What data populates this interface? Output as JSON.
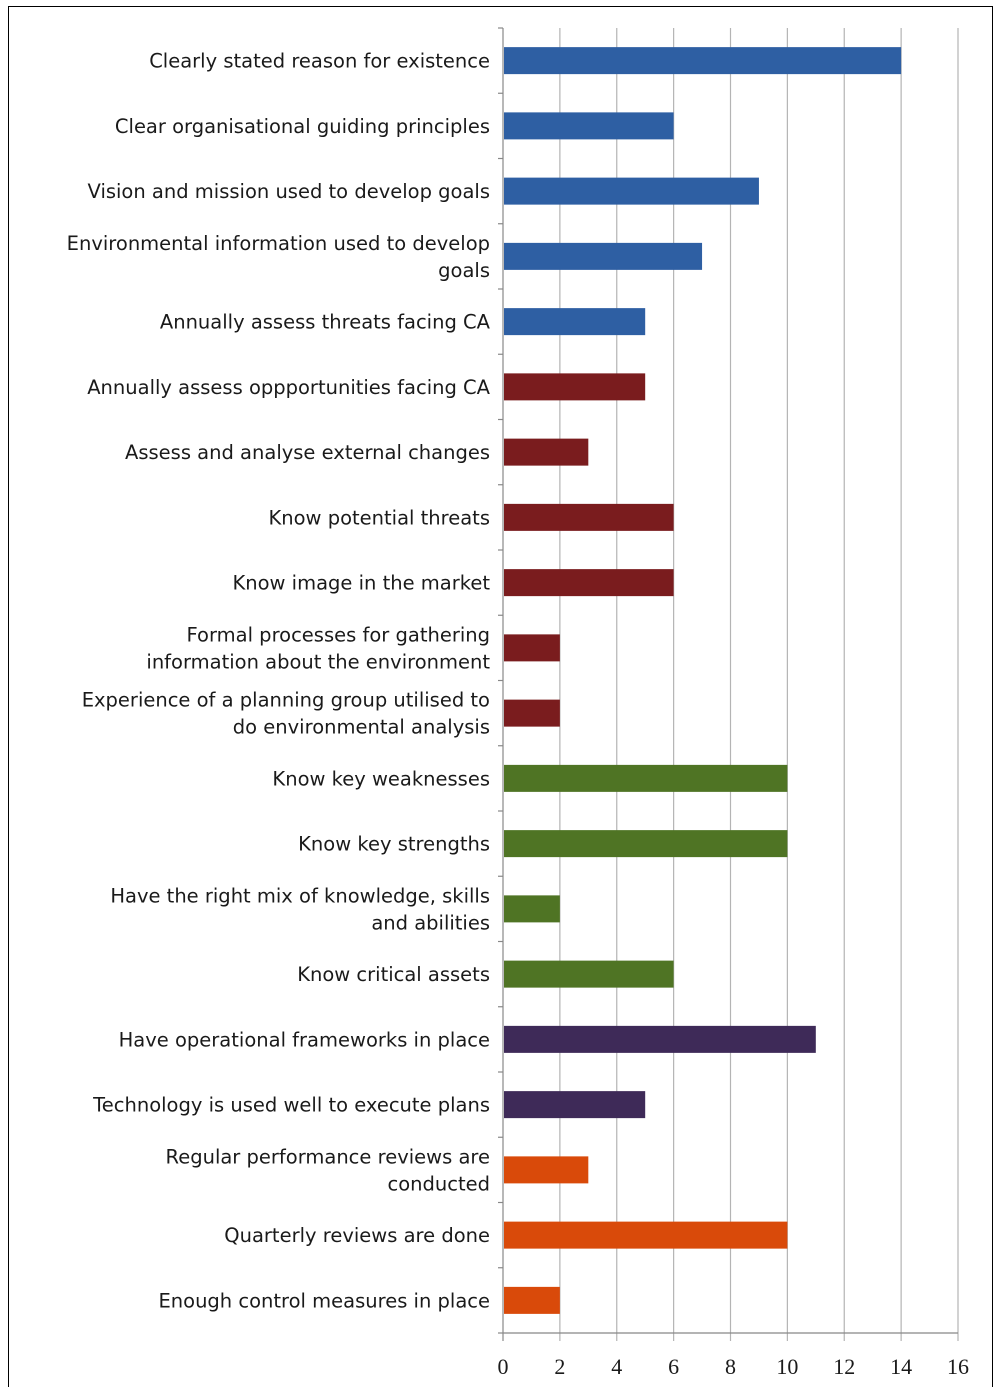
{
  "chart_data": {
    "type": "bar",
    "orientation": "horizontal",
    "title": "",
    "xlabel": "",
    "ylabel": "",
    "xlim": [
      0,
      16
    ],
    "x_ticks": [
      "0",
      "2",
      "4",
      "6",
      "8",
      "10",
      "12",
      "14",
      "16"
    ],
    "grid": "vertical",
    "legend": "none",
    "categories": [
      [
        "Clearly stated reason for existence"
      ],
      [
        "Clear organisational guiding principles"
      ],
      [
        "Vision and mission used to develop goals"
      ],
      [
        "Environmental information used to develop",
        "goals"
      ],
      [
        "Annually assess threats facing CA"
      ],
      [
        "Annually assess oppportunities facing CA"
      ],
      [
        "Assess and analyse external changes"
      ],
      [
        "Know potential threats"
      ],
      [
        "Know image in the market"
      ],
      [
        "Formal processes for gathering",
        "information about the environment"
      ],
      [
        "Experience of a planning group utilised to",
        "do environmental analysis"
      ],
      [
        "Know key weaknesses"
      ],
      [
        "Know key strengths"
      ],
      [
        "Have the right mix of knowledge, skills",
        "and abilities"
      ],
      [
        "Know critical assets"
      ],
      [
        "Have operational frameworks in place"
      ],
      [
        "Technology is used well to execute plans"
      ],
      [
        "Regular performance reviews are",
        "conducted"
      ],
      [
        "Quarterly reviews are done"
      ],
      [
        "Enough control measures in place"
      ]
    ],
    "values": [
      14,
      6,
      9,
      7,
      5,
      5,
      3,
      6,
      6,
      2,
      2,
      10,
      10,
      2,
      6,
      11,
      5,
      3,
      10,
      2
    ],
    "bar_colors": [
      "#2e5fa3",
      "#2e5fa3",
      "#2e5fa3",
      "#2e5fa3",
      "#2e5fa3",
      "#7a1c1e",
      "#7a1c1e",
      "#7a1c1e",
      "#7a1c1e",
      "#7a1c1e",
      "#7a1c1e",
      "#4f7424",
      "#4f7424",
      "#4f7424",
      "#4f7424",
      "#3e2a58",
      "#3e2a58",
      "#d94a0a",
      "#d94a0a",
      "#d94a0a"
    ],
    "gridline_color": "#b4b4b4",
    "axis_color": "#888888"
  }
}
